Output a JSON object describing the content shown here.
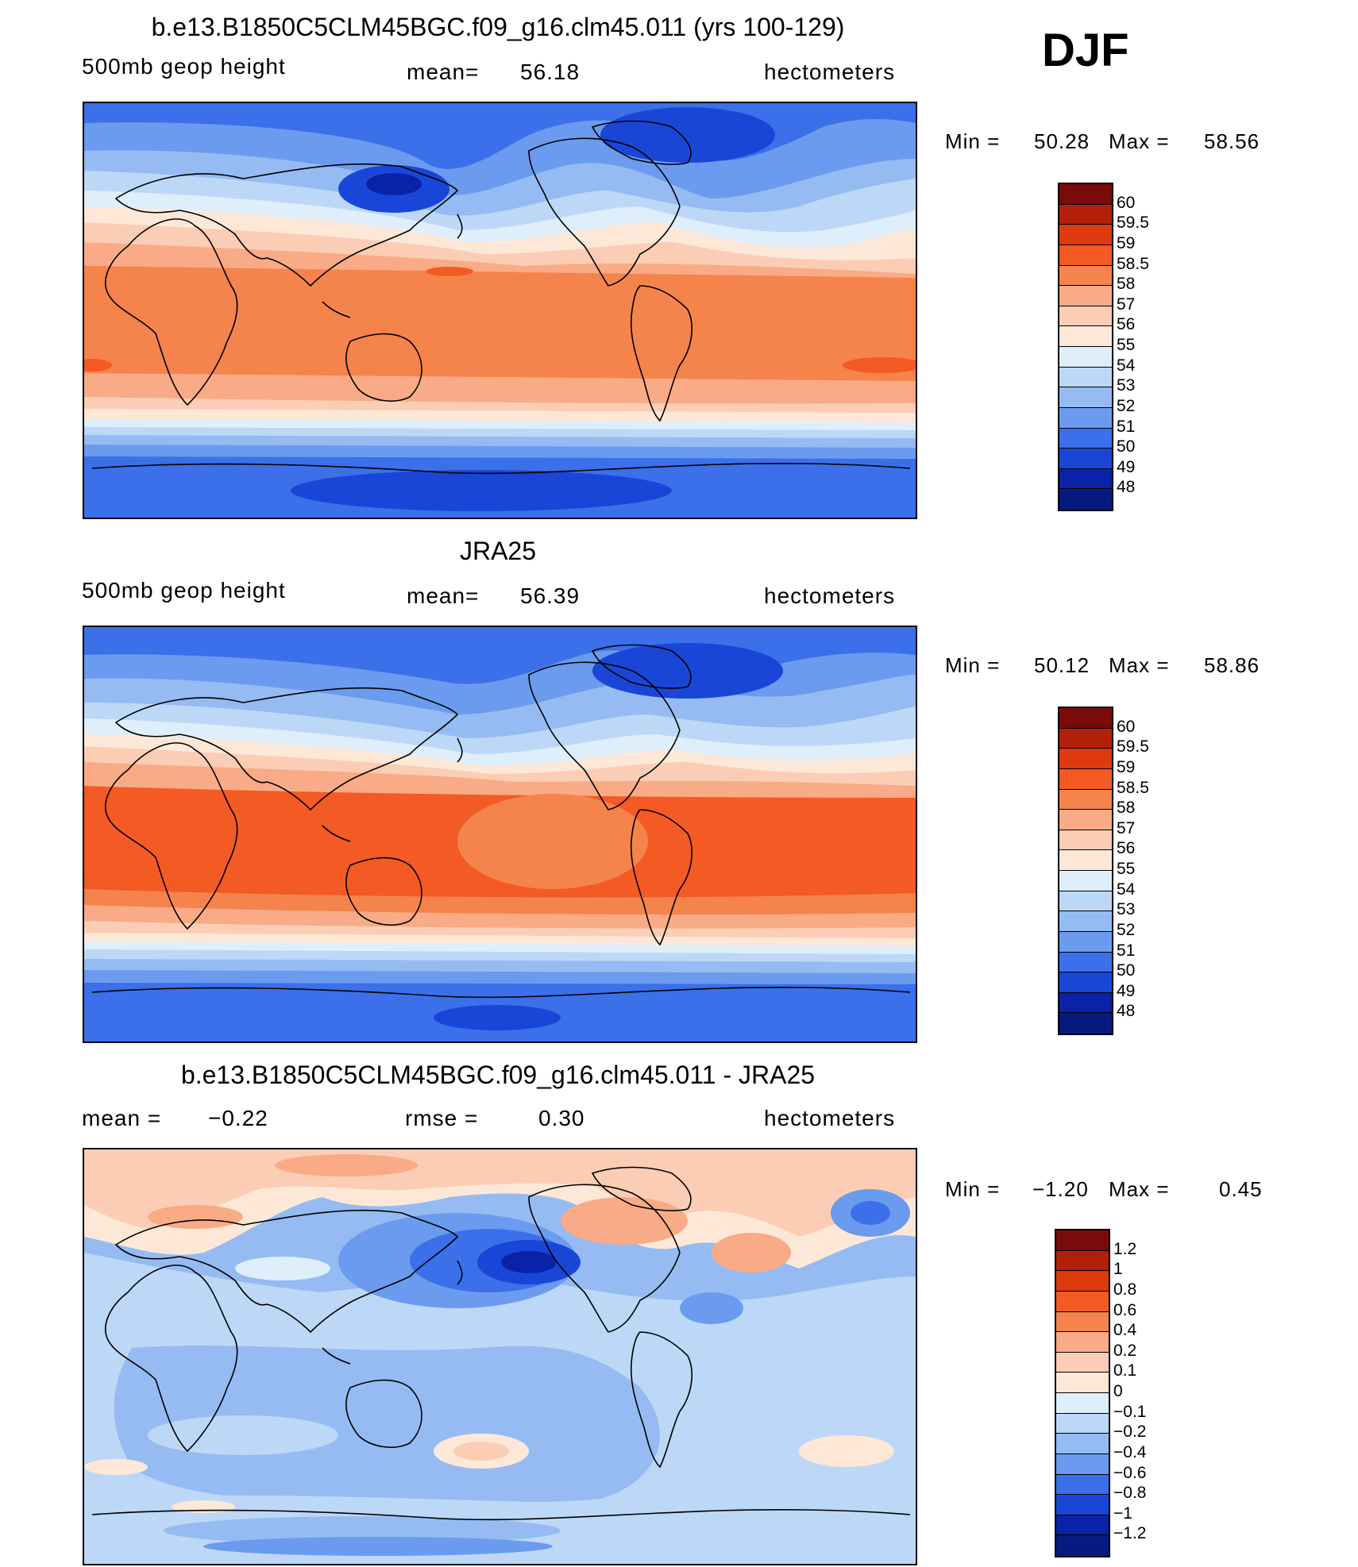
{
  "header": {
    "season": "DJF"
  },
  "chart_data": [
    {
      "type": "heatmap",
      "title": "b.e13.B1850C5CLM45BGC.f09_g16.clm45.011 (yrs 100-129)",
      "left_label": "500mb  geop  height",
      "mean_label": "mean=",
      "mean_value": "56.18",
      "units": "hectometers",
      "min_label": "Min  =",
      "min_value": "50.28",
      "max_label": "Max  =",
      "max_value": "58.56",
      "levels": [
        "60",
        "59.5",
        "59",
        "58.5",
        "58",
        "57",
        "56",
        "55",
        "54",
        "53",
        "52",
        "51",
        "50",
        "49",
        "48"
      ],
      "colors": [
        "#7a0b0b",
        "#b3200a",
        "#de3a0e",
        "#f45a23",
        "#f5834c",
        "#f8ab86",
        "#fbcdb5",
        "#fde8d8",
        "#dfeefb",
        "#bdd7f6",
        "#95bbf2",
        "#6b9bef",
        "#3b70ea",
        "#1a46d8",
        "#0a22a8",
        "#071a80"
      ]
    },
    {
      "type": "heatmap",
      "title": "JRA25",
      "left_label": "500mb  geop  height",
      "mean_label": "mean=",
      "mean_value": "56.39",
      "units": "hectometers",
      "min_label": "Min  =",
      "min_value": "50.12",
      "max_label": "Max  =",
      "max_value": "58.86",
      "levels": [
        "60",
        "59.5",
        "59",
        "58.5",
        "58",
        "57",
        "56",
        "55",
        "54",
        "53",
        "52",
        "51",
        "50",
        "49",
        "48"
      ],
      "colors": [
        "#7a0b0b",
        "#b3200a",
        "#de3a0e",
        "#f45a23",
        "#f5834c",
        "#f8ab86",
        "#fbcdb5",
        "#fde8d8",
        "#dfeefb",
        "#bdd7f6",
        "#95bbf2",
        "#6b9bef",
        "#3b70ea",
        "#1a46d8",
        "#0a22a8",
        "#071a80"
      ]
    },
    {
      "type": "heatmap",
      "title": "b.e13.B1850C5CLM45BGC.f09_g16.clm45.011 - JRA25",
      "left_label": "mean  =",
      "left_value": "−0.22",
      "mean_label": "rmse  =",
      "mean_value": "0.30",
      "units": "hectometers",
      "min_label": "Min  =",
      "min_value": "−1.20",
      "max_label": "Max  =",
      "max_value": "0.45",
      "levels": [
        "1.2",
        "1",
        "0.8",
        "0.6",
        "0.4",
        "0.2",
        "0.1",
        "0",
        "−0.1",
        "−0.2",
        "−0.4",
        "−0.6",
        "−0.8",
        "−1",
        "−1.2"
      ],
      "colors": [
        "#7a0b0b",
        "#b3200a",
        "#de3a0e",
        "#f45a23",
        "#f5834c",
        "#f8ab86",
        "#fbcdb5",
        "#fde8d8",
        "#dfeefb",
        "#bdd7f6",
        "#95bbf2",
        "#6b9bef",
        "#3b70ea",
        "#1a46d8",
        "#0a22a8",
        "#071a80"
      ]
    }
  ]
}
